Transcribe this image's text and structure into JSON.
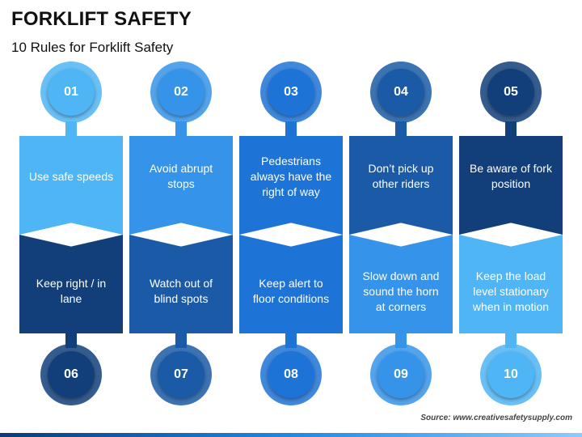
{
  "title": "FORKLIFT SAFETY",
  "subtitle": "10 Rules for Forklift Safety",
  "columns": [
    {
      "top_number": "01",
      "top_text": "Use safe speeds",
      "bottom_text": "Keep right / in lane",
      "bottom_number": "06",
      "top_color": "#4fb5f5",
      "bottom_color": "#123f7a"
    },
    {
      "top_number": "02",
      "top_text": "Avoid abrupt stops",
      "bottom_text": "Watch out of blind spots",
      "bottom_number": "07",
      "top_color": "#3593ea",
      "bottom_color": "#1a5aa6"
    },
    {
      "top_number": "03",
      "top_text": "Pedestrians always have the right of way",
      "bottom_text": "Keep alert to floor conditions",
      "bottom_number": "08",
      "top_color": "#1d73d6",
      "bottom_color": "#1d73d6"
    },
    {
      "top_number": "04",
      "top_text": "Don’t pick up other riders",
      "bottom_text": "Slow down and sound the horn at corners",
      "bottom_number": "09",
      "top_color": "#1a5aa6",
      "bottom_color": "#3593ea"
    },
    {
      "top_number": "05",
      "top_text": "Be aware of fork position",
      "bottom_text": "Keep the load level stationary when in motion",
      "bottom_number": "10",
      "top_color": "#123f7a",
      "bottom_color": "#4fb5f5"
    }
  ],
  "source": "Source: www.creativesafetysupply.com"
}
